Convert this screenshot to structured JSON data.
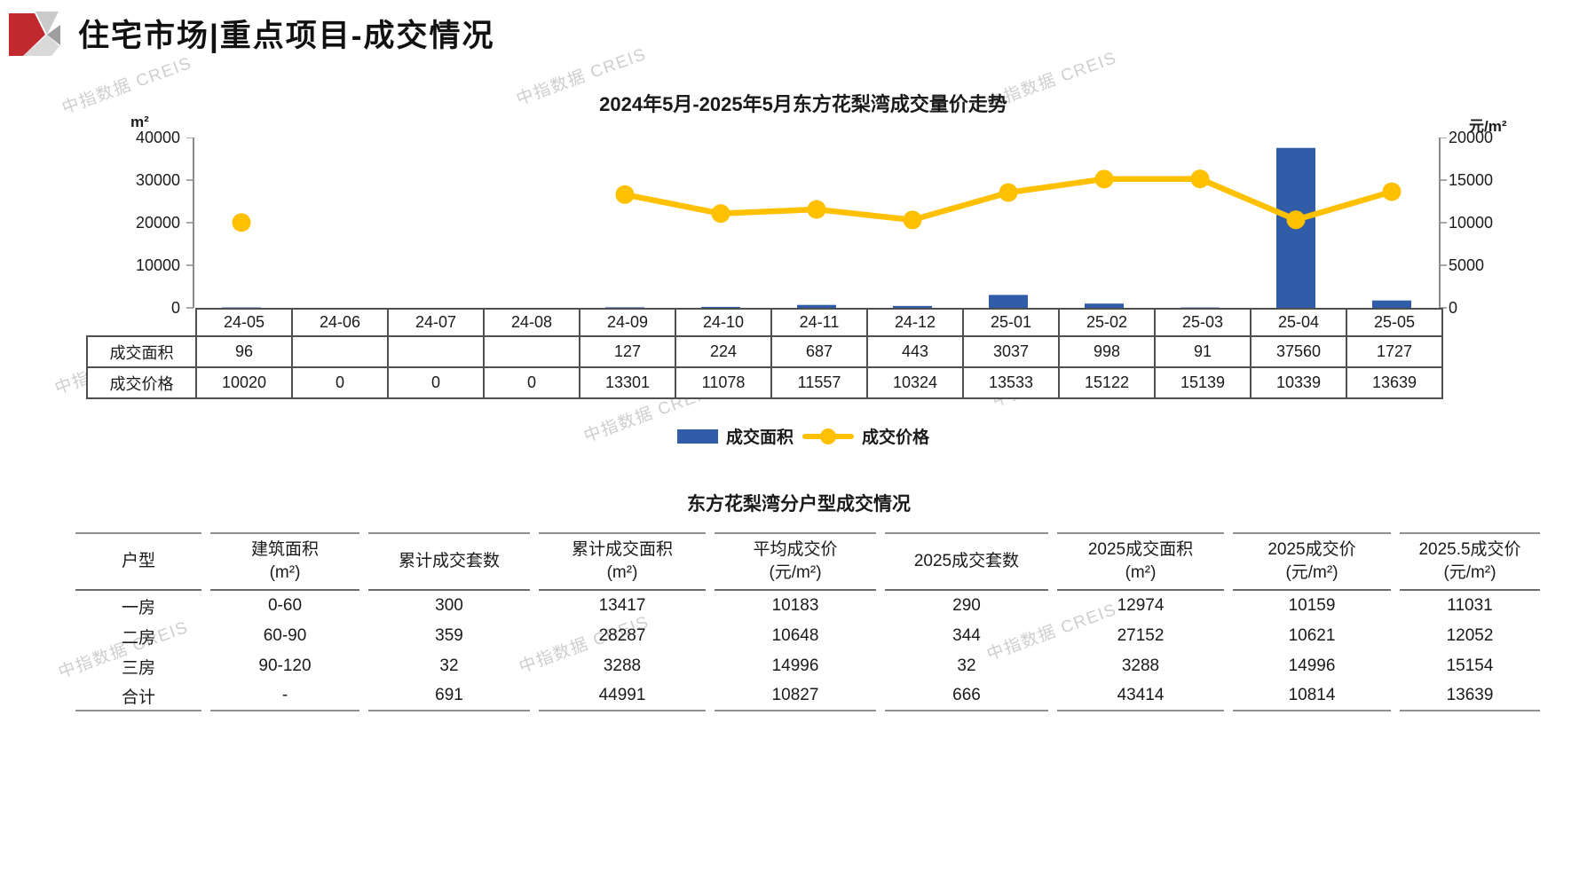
{
  "page": {
    "title": "住宅市场|重点项目-成交情况"
  },
  "watermark": {
    "text": "中指数据 CREIS"
  },
  "chart_data": {
    "type": "combo-bar-line",
    "title": "2024年5月-2025年5月东方花梨湾成交量价走势",
    "grid": false,
    "legend_position": "bottom",
    "categories": [
      "24-05",
      "24-06",
      "24-07",
      "24-08",
      "24-09",
      "24-10",
      "24-11",
      "24-12",
      "25-01",
      "25-02",
      "25-03",
      "25-04",
      "25-05"
    ],
    "left_axis": {
      "unit": "m²",
      "ticks": [
        0,
        10000,
        20000,
        30000,
        40000
      ],
      "max": 40000
    },
    "right_axis": {
      "unit": "元/m²",
      "ticks": [
        0,
        5000,
        10000,
        15000,
        20000
      ],
      "max": 20000
    },
    "series": [
      {
        "name": "成交面积",
        "type": "bar",
        "axis": "left",
        "color": "#305CA8",
        "values": [
          96,
          null,
          null,
          null,
          127,
          224,
          687,
          443,
          3037,
          998,
          91,
          37560,
          1727
        ]
      },
      {
        "name": "成交价格",
        "type": "line",
        "axis": "right",
        "color": "#FFC000",
        "values": [
          10020,
          null,
          null,
          null,
          13301,
          11078,
          11557,
          10324,
          13533,
          15122,
          15139,
          10339,
          13639
        ]
      }
    ],
    "legend": [
      {
        "label": "成交面积",
        "color": "#305CA8",
        "marker": "bar"
      },
      {
        "label": "成交价格",
        "color": "#FFC000",
        "marker": "line"
      }
    ]
  },
  "monthly_table": {
    "rows": [
      {
        "label": "成交面积",
        "values": [
          "96",
          "",
          "",
          "",
          "127",
          "224",
          "687",
          "443",
          "3037",
          "998",
          "91",
          "37560",
          "1727"
        ]
      },
      {
        "label": "成交价格",
        "values": [
          "10020",
          "0",
          "0",
          "0",
          "13301",
          "11078",
          "11557",
          "10324",
          "13533",
          "15122",
          "15139",
          "10339",
          "13639"
        ]
      }
    ]
  },
  "type_table": {
    "title": "东方花梨湾分户型成交情况",
    "headers": [
      [
        "户型",
        ""
      ],
      [
        "建筑面积",
        "(m²)"
      ],
      [
        "累计成交套数",
        ""
      ],
      [
        "累计成交面积",
        "(m²)"
      ],
      [
        "平均成交价",
        "(元/m²)"
      ],
      [
        "2025成交套数",
        ""
      ],
      [
        "2025成交面积",
        "(m²)"
      ],
      [
        "2025成交价",
        "(元/m²)"
      ],
      [
        "2025.5成交价",
        "(元/m²)"
      ]
    ],
    "rows": [
      [
        "一房",
        "0-60",
        "300",
        "13417",
        "10183",
        "290",
        "12974",
        "10159",
        "11031"
      ],
      [
        "二房",
        "60-90",
        "359",
        "28287",
        "10648",
        "344",
        "27152",
        "10621",
        "12052"
      ],
      [
        "三房",
        "90-120",
        "32",
        "3288",
        "14996",
        "32",
        "3288",
        "14996",
        "15154"
      ],
      [
        "合计",
        "-",
        "691",
        "44991",
        "10827",
        "666",
        "43414",
        "10814",
        "13639"
      ]
    ]
  }
}
